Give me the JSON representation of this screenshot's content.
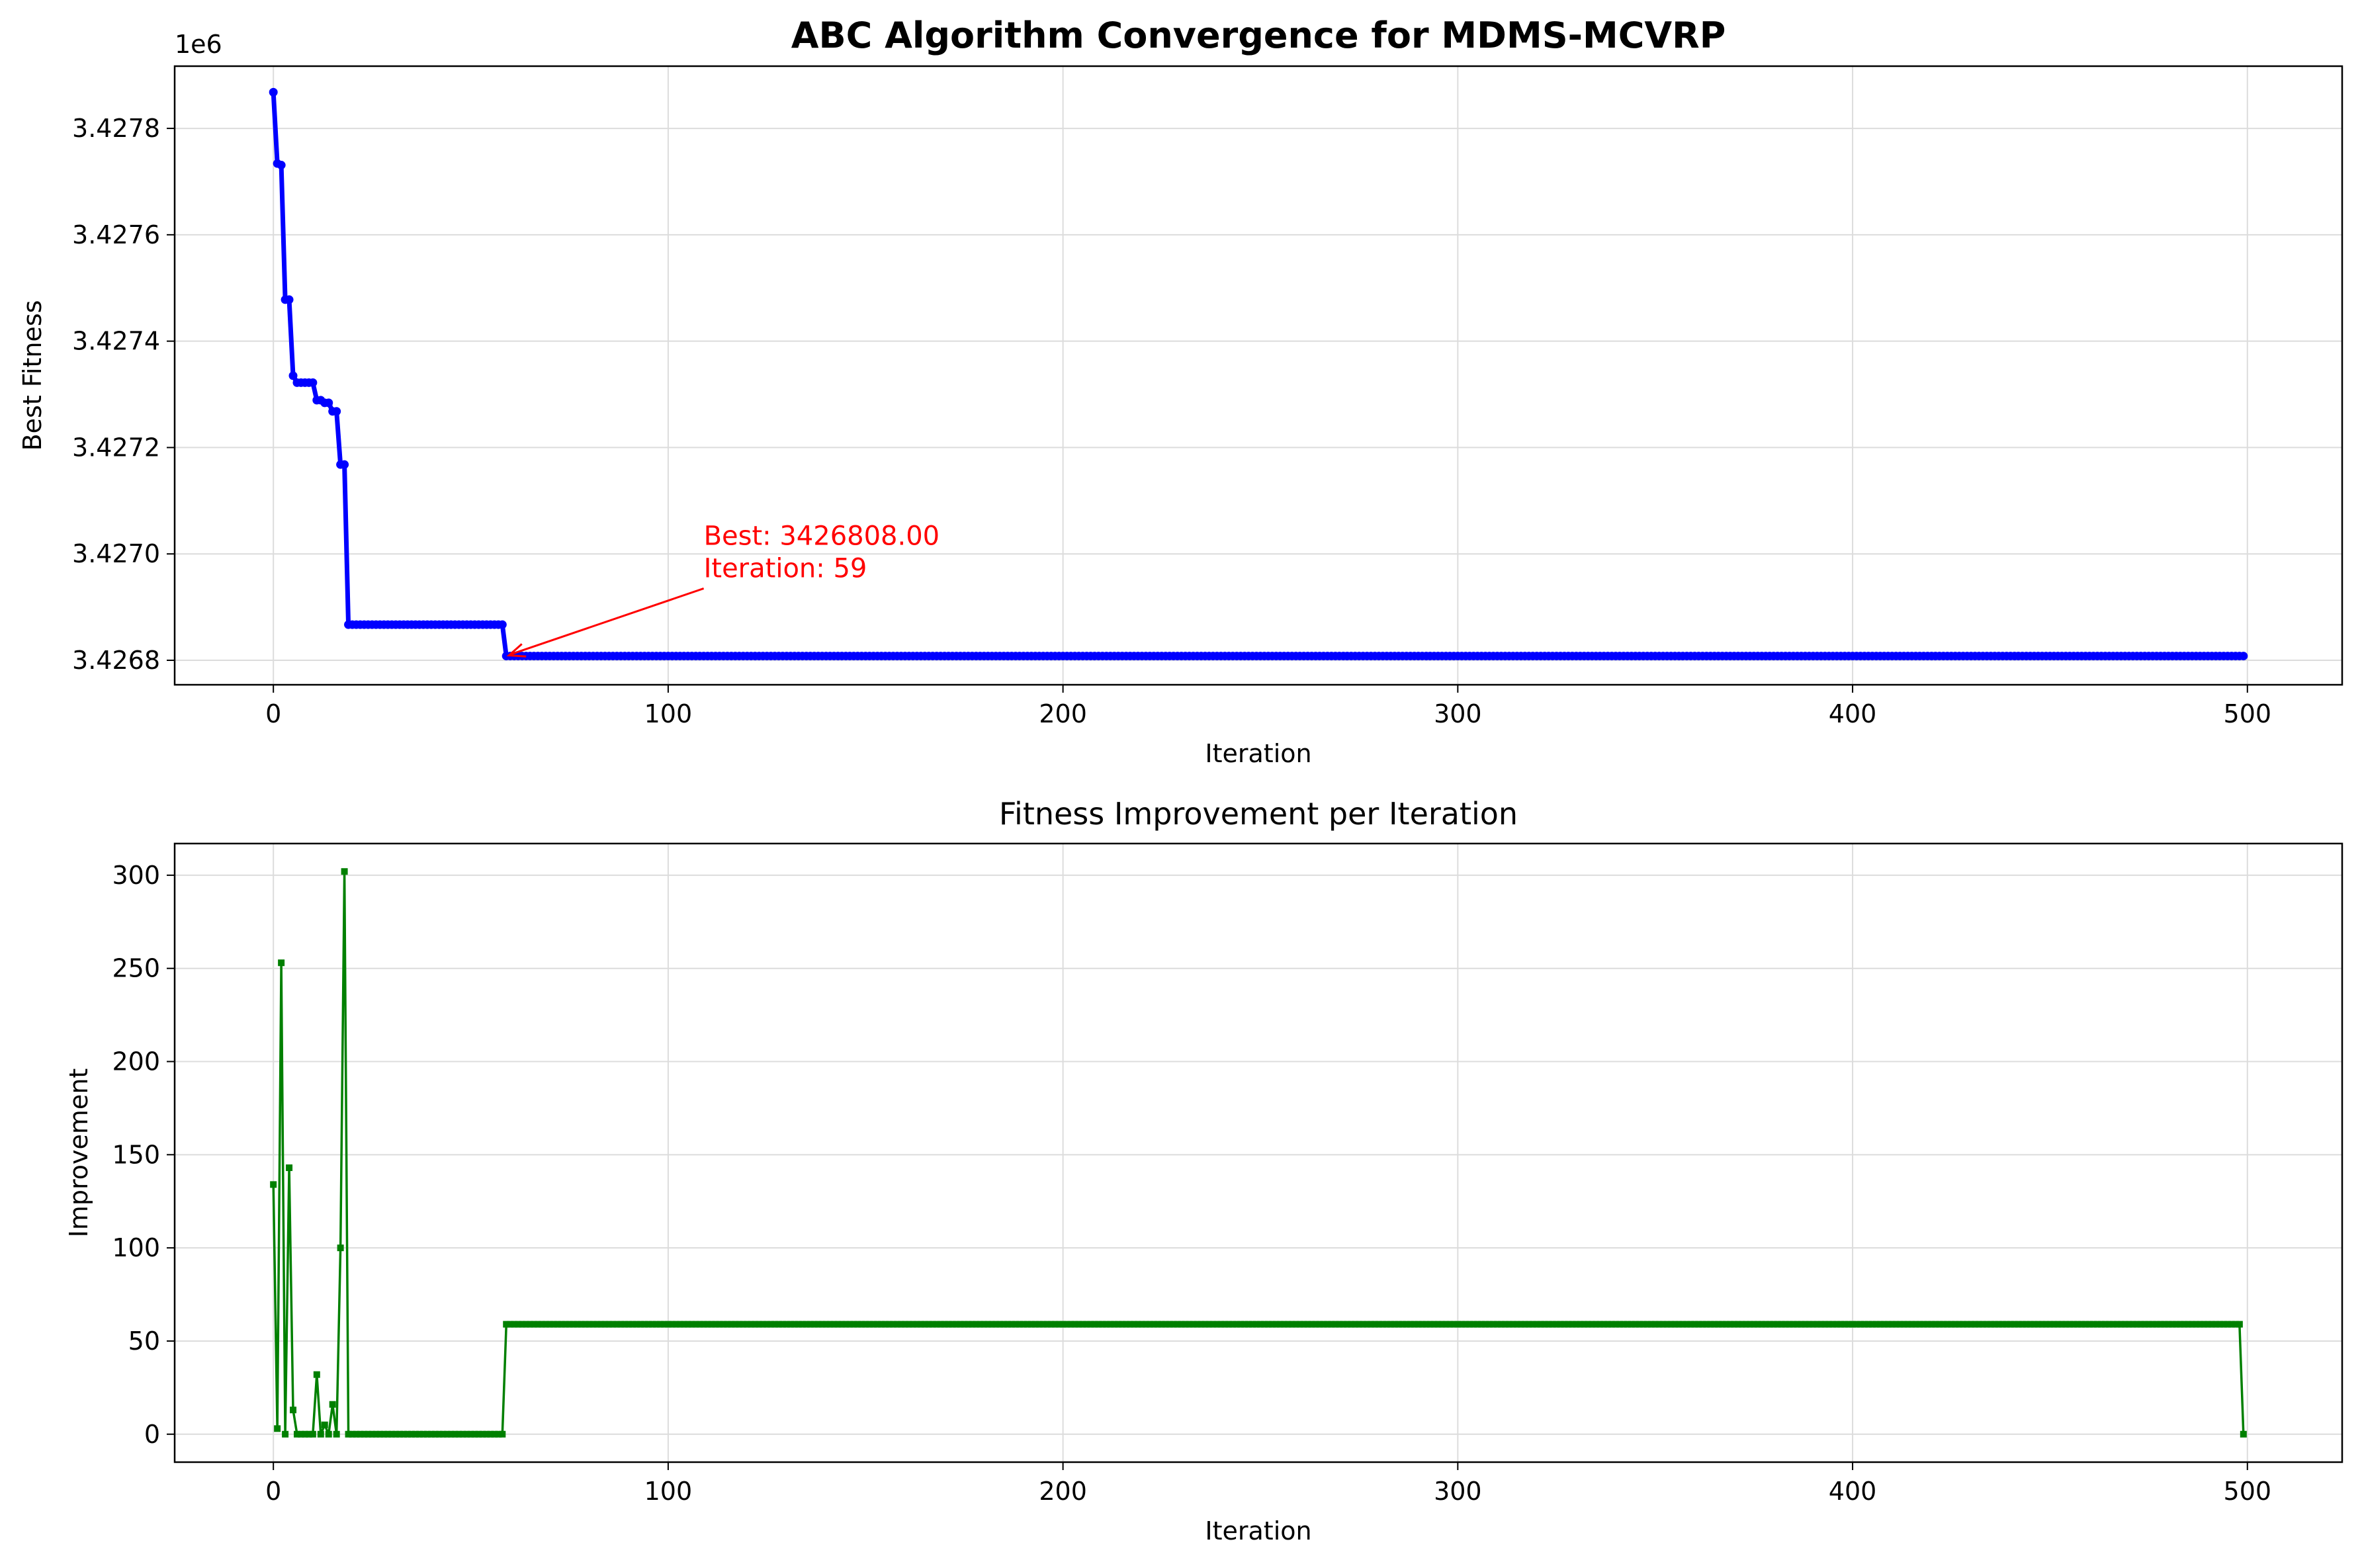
{
  "chart_data": [
    {
      "type": "line",
      "title": "ABC Algorithm Convergence for MDMS-MCVRP",
      "xlabel": "Iteration",
      "ylabel": "Best Fitness",
      "offset_text": "1e6",
      "xlim": [
        -25,
        524
      ],
      "ylim": [
        3426754,
        3427917
      ],
      "xticks": [
        0,
        100,
        200,
        300,
        400,
        500
      ],
      "yticks": [
        3426800,
        3427000,
        3427200,
        3427400,
        3427600,
        3427800
      ],
      "ytick_labels": [
        "3.4268",
        "3.4270",
        "3.4272",
        "3.4274",
        "3.4276",
        "3.4278"
      ],
      "grid": true,
      "color": "#0000ff",
      "marker": "circle",
      "series": [
        {
          "x": [
            0,
            1,
            2,
            3,
            4,
            5,
            6,
            7,
            8,
            9,
            10,
            11,
            12,
            13,
            14,
            15,
            16,
            17,
            18,
            19,
            20,
            59,
            499
          ],
          "y": [
            3427868,
            3427734,
            3427731,
            3427478,
            3427478,
            3427335,
            3427322,
            3427322,
            3427322,
            3427322,
            3427322,
            3427289,
            3427289,
            3427284,
            3427284,
            3427268,
            3427268,
            3427168,
            3427168,
            3426867,
            3426867,
            3426808,
            3426808
          ],
          "step_after": true
        }
      ],
      "annotation": {
        "lines": [
          "Best: 3426808.00",
          "Iteration: 59"
        ],
        "x": 59,
        "y": 3426808,
        "text_x": 109,
        "text_y": 3426940,
        "color": "#ff0000"
      }
    },
    {
      "type": "line",
      "title": "Fitness Improvement per Iteration",
      "xlabel": "Iteration",
      "ylabel": "Improvement",
      "xlim": [
        -25,
        524
      ],
      "ylim": [
        -15,
        317
      ],
      "xticks": [
        0,
        100,
        200,
        300,
        400,
        500
      ],
      "yticks": [
        0,
        50,
        100,
        150,
        200,
        250,
        300
      ],
      "grid": true,
      "color": "#008000",
      "marker": "square",
      "series": [
        {
          "x": [
            0,
            1,
            2,
            3,
            4,
            5,
            6,
            7,
            8,
            9,
            10,
            11,
            12,
            13,
            14,
            15,
            16,
            17,
            18,
            19,
            58,
            59,
            499
          ],
          "y": [
            134,
            3,
            253,
            0,
            143,
            13,
            0,
            0,
            0,
            0,
            0,
            32,
            0,
            5,
            0,
            16,
            0,
            100,
            302,
            0,
            0,
            59,
            0
          ]
        }
      ]
    }
  ]
}
